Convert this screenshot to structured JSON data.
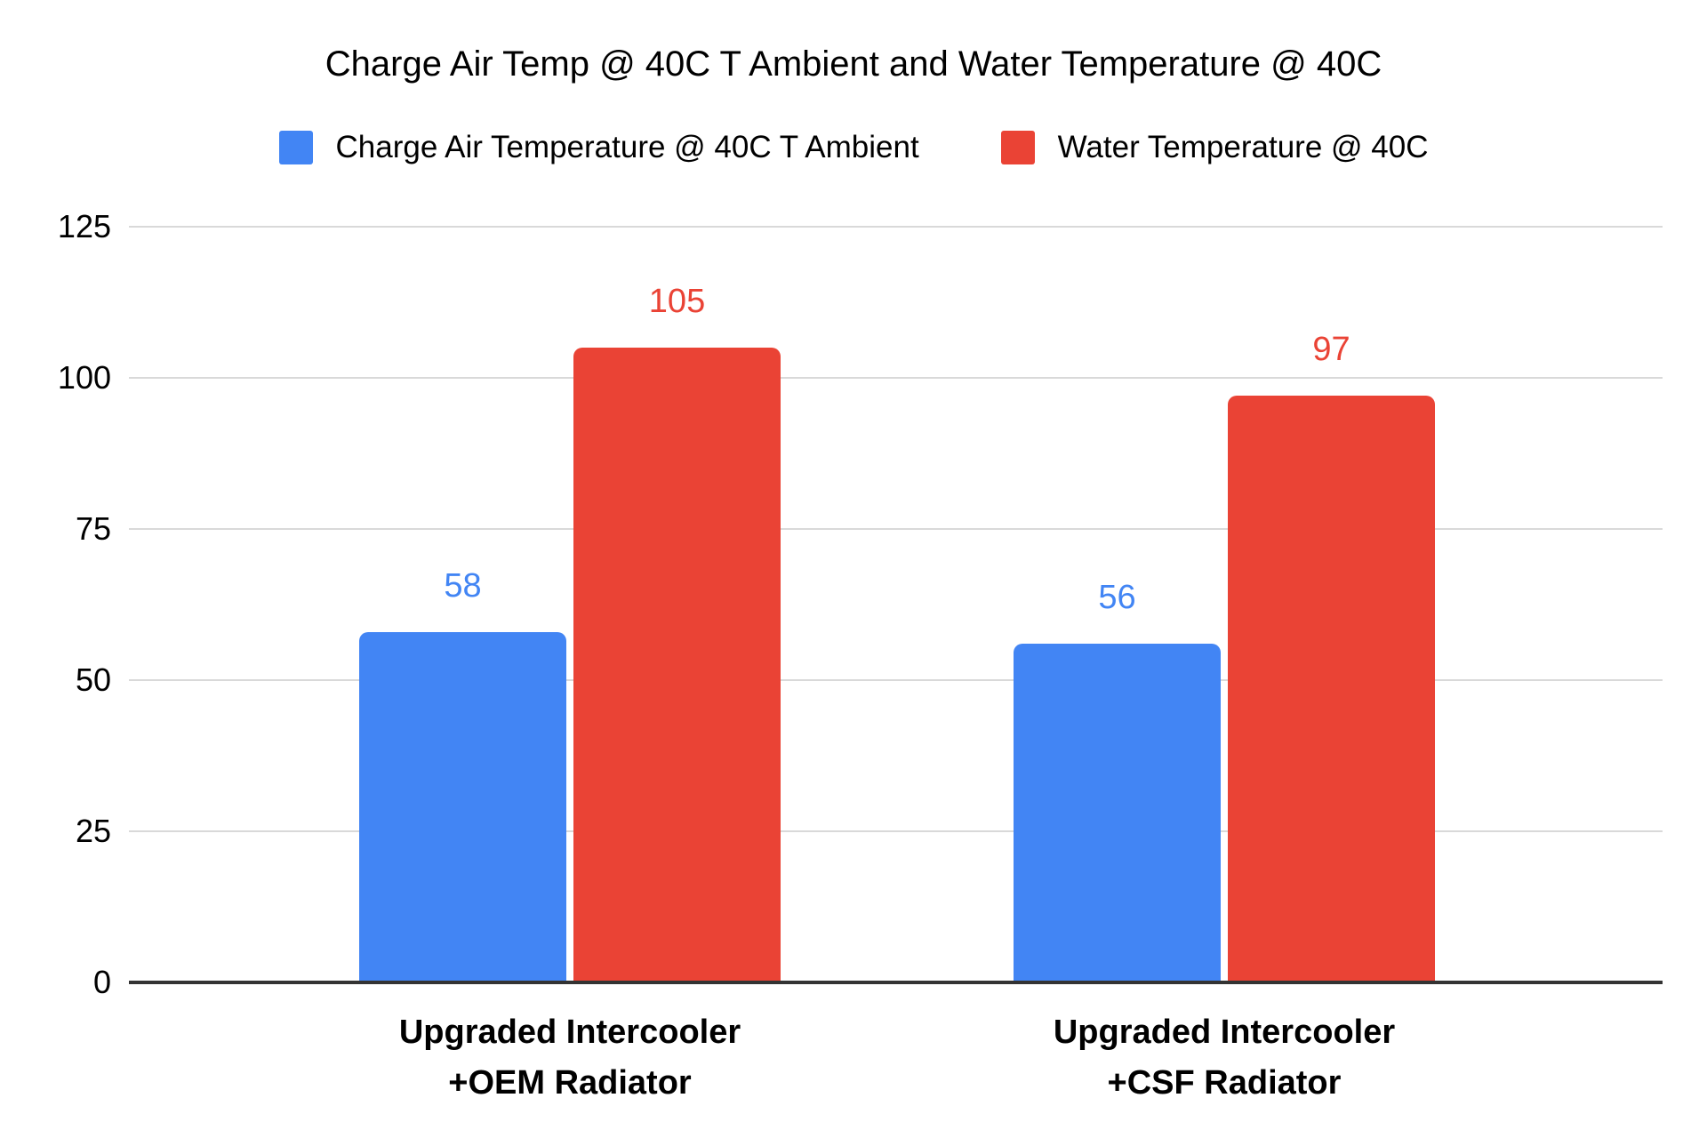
{
  "chart_data": {
    "type": "bar",
    "title": "Charge Air Temp @ 40C T Ambient and Water Temperature @ 40C",
    "categories": [
      [
        "Upgraded Intercooler",
        "+OEM Radiator"
      ],
      [
        "Upgraded Intercooler",
        "+CSF Radiator"
      ]
    ],
    "series": [
      {
        "name": "Charge Air Temperature @ 40C T Ambient",
        "color": "#4285F4",
        "values": [
          58,
          56
        ]
      },
      {
        "name": "Water Temperature @ 40C",
        "color": "#EA4335",
        "values": [
          105,
          97
        ]
      }
    ],
    "y_ticks": [
      0,
      25,
      50,
      75,
      100,
      125
    ],
    "ylim": [
      0,
      125
    ],
    "grid": true,
    "legend_position": "top",
    "value_labels_shown": true
  },
  "colors": {
    "background": "#ffffff",
    "gridline": "#d9d9d9",
    "axis_line": "#333333",
    "text": "#000000"
  }
}
